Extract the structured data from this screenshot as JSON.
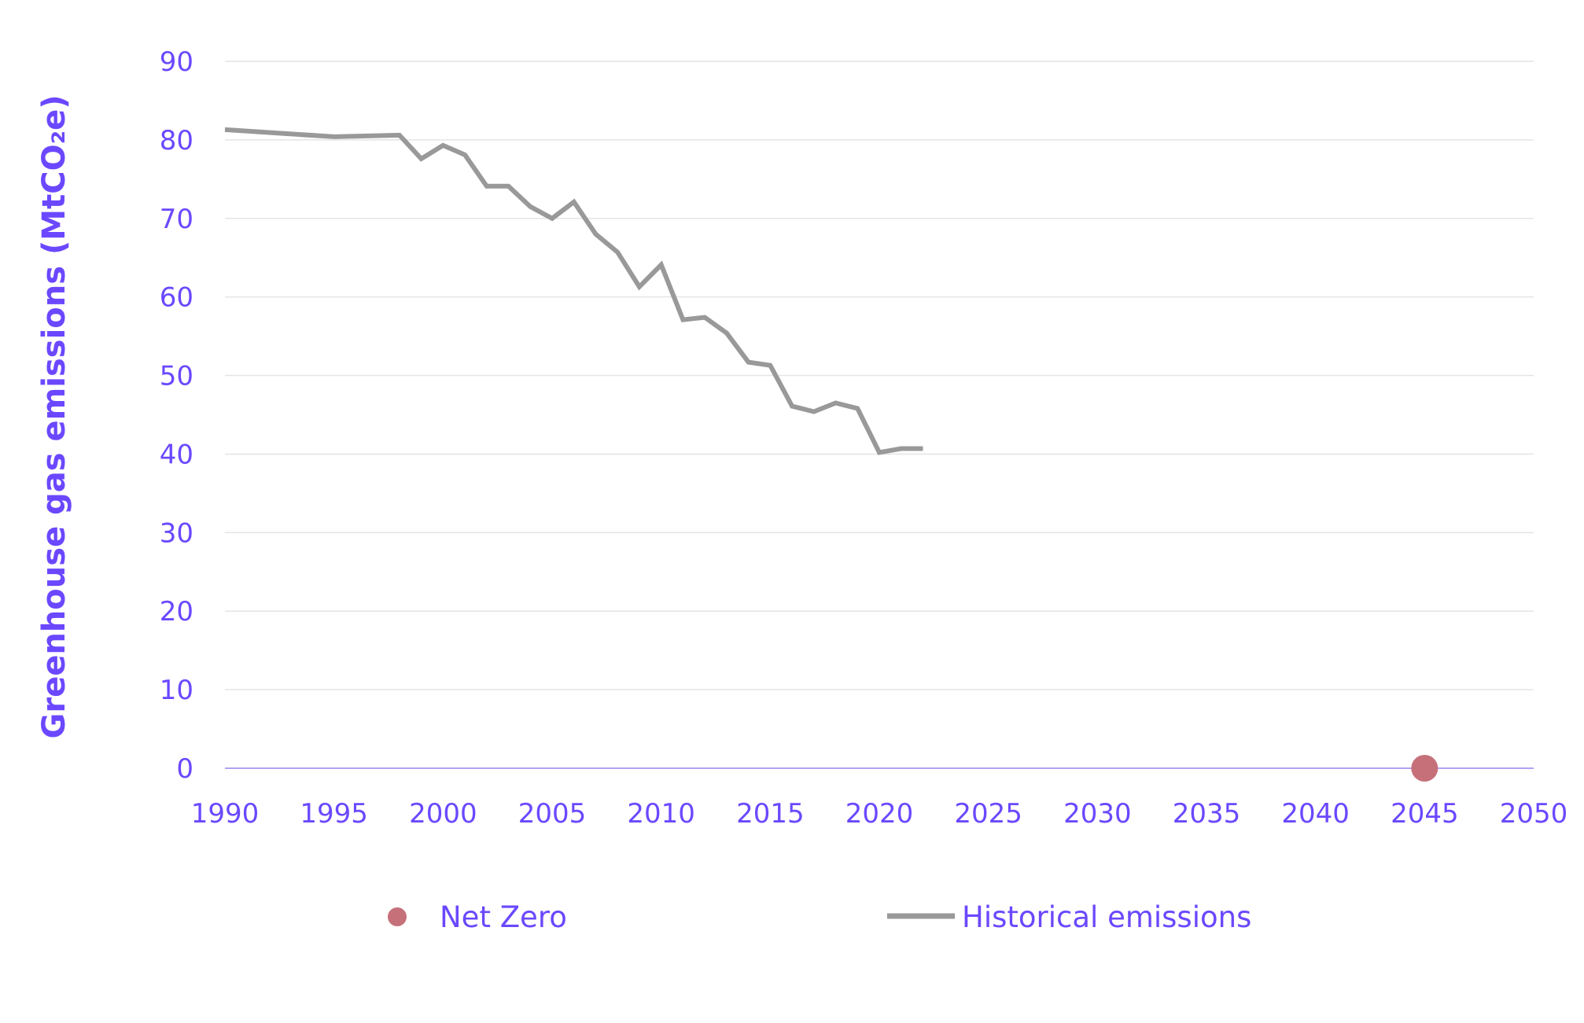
{
  "chart_data": {
    "type": "line",
    "title": "",
    "xlabel": "",
    "ylabel": "Greenhouse gas emissions (MtCO₂e)",
    "xlim": [
      1990,
      2050
    ],
    "ylim": [
      0,
      90
    ],
    "x_ticks": [
      "1990",
      "1995",
      "2000",
      "2005",
      "2010",
      "2015",
      "2020",
      "2025",
      "2030",
      "2035",
      "2040",
      "2045",
      "2050"
    ],
    "y_ticks": [
      "0",
      "10",
      "20",
      "30",
      "40",
      "50",
      "60",
      "70",
      "80",
      "90"
    ],
    "grid": true,
    "legend_position": "bottom",
    "series": [
      {
        "name": "Historical emissions",
        "kind": "line",
        "color": "#999999",
        "x": [
          1990,
          1995,
          1998,
          1999,
          2000,
          2001,
          2002,
          2003,
          2004,
          2005,
          2006,
          2007,
          2008,
          2009,
          2010,
          2011,
          2012,
          2013,
          2014,
          2015,
          2016,
          2017,
          2018,
          2019,
          2020,
          2021,
          2022
        ],
        "y": [
          81.3,
          80.4,
          80.6,
          77.6,
          79.3,
          78.1,
          74.1,
          74.1,
          71.5,
          70.0,
          72.1,
          68.0,
          65.7,
          61.3,
          64.1,
          57.1,
          57.4,
          55.4,
          51.7,
          51.3,
          46.1,
          45.4,
          46.5,
          45.8,
          40.2,
          40.7,
          40.7
        ]
      },
      {
        "name": "Net Zero",
        "kind": "point",
        "color": "#C6707A",
        "x": [
          2045
        ],
        "y": [
          0
        ]
      }
    ],
    "colors": {
      "text": "#6B48FF",
      "grid": "#E4E4E4",
      "zero_axis": "#9B80F0"
    }
  }
}
